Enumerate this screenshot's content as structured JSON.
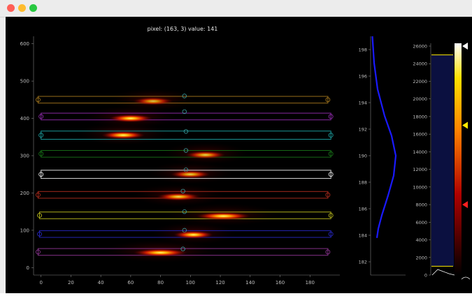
{
  "window": {
    "controls": [
      "close",
      "minimize",
      "zoom"
    ]
  },
  "status_text": "pixel: (163, 3) value: 141",
  "colors": {
    "background": "#000000",
    "axis": "#808080",
    "profile_line": "#1a1aff",
    "colorbar_marker": "#ffeb00",
    "colorbar_marker_low": "#ff2020",
    "colorbar_marker_high": "#ffffff"
  },
  "main_plot": {
    "x_ticks": [
      "0",
      "20",
      "40",
      "60",
      "80",
      "100",
      "120",
      "140",
      "160",
      "180"
    ],
    "y_ticks": [
      "0",
      "100",
      "200",
      "300",
      "400",
      "500",
      "600"
    ],
    "x_range": [
      -5,
      200
    ],
    "y_range": [
      -20,
      620
    ],
    "rois": [
      {
        "y": 42,
        "x1": -2,
        "x2": 192,
        "h": 18,
        "color": "#9a3aa0"
      },
      {
        "y": 90,
        "x1": -1,
        "x2": 194,
        "h": 18,
        "color": "#2a2ad0"
      },
      {
        "y": 140,
        "x1": -1,
        "x2": 194,
        "h": 18,
        "color": "#c8c820"
      },
      {
        "y": 195,
        "x1": -2,
        "x2": 192,
        "h": 18,
        "color": "#c03020"
      },
      {
        "y": 250,
        "x1": 0,
        "x2": 194,
        "h": 22,
        "color": "#ffffff"
      },
      {
        "y": 305,
        "x1": 0,
        "x2": 194,
        "h": 18,
        "color": "#1a7a1a"
      },
      {
        "y": 355,
        "x1": 0,
        "x2": 194,
        "h": 22,
        "color": "#20b0b0"
      },
      {
        "y": 405,
        "x1": 0,
        "x2": 194,
        "h": 18,
        "color": "#a030c0"
      },
      {
        "y": 450,
        "x1": -2,
        "x2": 192,
        "h": 18,
        "color": "#b08020"
      }
    ],
    "mid_markers": [
      {
        "x": 95,
        "y": 50
      },
      {
        "x": 96,
        "y": 100
      },
      {
        "x": 96,
        "y": 150
      },
      {
        "x": 95,
        "y": 205
      },
      {
        "x": 97,
        "y": 262
      },
      {
        "x": 97,
        "y": 314
      },
      {
        "x": 97,
        "y": 365
      },
      {
        "x": 96,
        "y": 418
      },
      {
        "x": 96,
        "y": 460
      }
    ],
    "blobs": [
      {
        "x": 80,
        "y": 40,
        "len": 30,
        "intensity": 1.0
      },
      {
        "x": 102,
        "y": 88,
        "len": 22,
        "intensity": 1.0
      },
      {
        "x": 122,
        "y": 138,
        "len": 30,
        "intensity": 1.0
      },
      {
        "x": 92,
        "y": 190,
        "len": 24,
        "intensity": 0.9
      },
      {
        "x": 100,
        "y": 250,
        "len": 22,
        "intensity": 0.85
      },
      {
        "x": 110,
        "y": 302,
        "len": 22,
        "intensity": 0.85
      },
      {
        "x": 55,
        "y": 355,
        "len": 24,
        "intensity": 1.0
      },
      {
        "x": 60,
        "y": 400,
        "len": 24,
        "intensity": 1.0
      },
      {
        "x": 75,
        "y": 446,
        "len": 22,
        "intensity": 0.8
      }
    ]
  },
  "profile_plot": {
    "y_ticks": [
      "182",
      "184",
      "186",
      "188",
      "190",
      "192",
      "194",
      "196",
      "198"
    ],
    "y_range": [
      181,
      199
    ],
    "x_range": [
      0,
      1
    ],
    "curve": [
      [
        0.05,
        199
      ],
      [
        0.1,
        197
      ],
      [
        0.2,
        195
      ],
      [
        0.4,
        193
      ],
      [
        0.6,
        191.5
      ],
      [
        0.72,
        190
      ],
      [
        0.66,
        188.5
      ],
      [
        0.5,
        187
      ],
      [
        0.32,
        185.5
      ],
      [
        0.22,
        184.5
      ],
      [
        0.18,
        183.8
      ]
    ]
  },
  "colorbar": {
    "ticks": [
      "0",
      "2000",
      "4000",
      "6000",
      "8000",
      "10000",
      "12000",
      "14000",
      "16000",
      "18000",
      "20000",
      "22000",
      "24000",
      "26000"
    ],
    "range": [
      0,
      26000
    ],
    "markers": [
      {
        "value": 26000,
        "color": "#ffffff"
      },
      {
        "value": 17000,
        "color": "#ffeb00"
      },
      {
        "value": 8000,
        "color": "#ff2020"
      }
    ],
    "histogram_range": [
      1000,
      25000
    ]
  }
}
